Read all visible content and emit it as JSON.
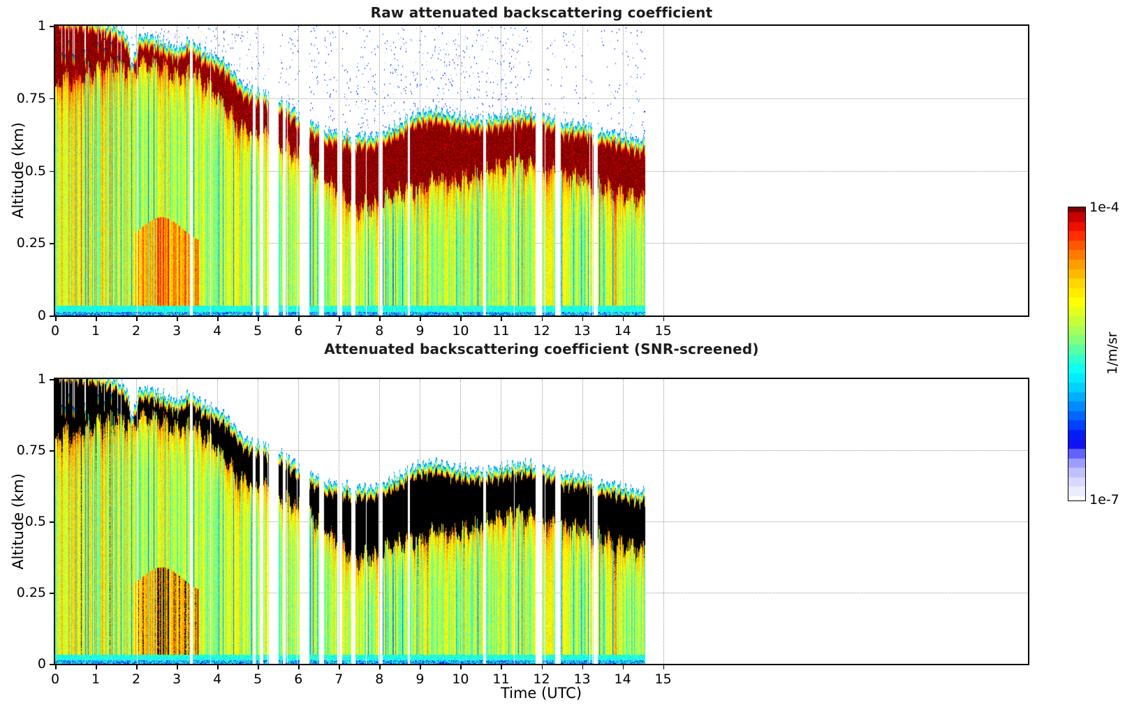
{
  "figure": {
    "background": "#ffffff",
    "colorbar": {
      "max_label": "1e-4",
      "min_label": "1e-7",
      "unit_label": "1/m/sr",
      "scale": "log",
      "levels": 32
    },
    "colormap_stops": [
      {
        "v": 0.0,
        "c": "#ffffff"
      },
      {
        "v": 0.04,
        "c": "#e8e8ff"
      },
      {
        "v": 0.08,
        "c": "#d0d0ff"
      },
      {
        "v": 0.11,
        "c": "#b4b4ff"
      },
      {
        "v": 0.14,
        "c": "#9090ff"
      },
      {
        "v": 0.17,
        "c": "#5050ff"
      },
      {
        "v": 0.2,
        "c": "#0000ee"
      },
      {
        "v": 0.26,
        "c": "#0044ff"
      },
      {
        "v": 0.32,
        "c": "#0088ff"
      },
      {
        "v": 0.38,
        "c": "#00ccff"
      },
      {
        "v": 0.44,
        "c": "#00ffff"
      },
      {
        "v": 0.5,
        "c": "#44ffbb"
      },
      {
        "v": 0.55,
        "c": "#88ff77"
      },
      {
        "v": 0.6,
        "c": "#bbff44"
      },
      {
        "v": 0.65,
        "c": "#e8ff18"
      },
      {
        "v": 0.68,
        "c": "#ffff00"
      },
      {
        "v": 0.74,
        "c": "#ffd800"
      },
      {
        "v": 0.8,
        "c": "#ffa500"
      },
      {
        "v": 0.86,
        "c": "#ff6400"
      },
      {
        "v": 0.91,
        "c": "#ff2800"
      },
      {
        "v": 0.95,
        "c": "#e60000"
      },
      {
        "v": 0.98,
        "c": "#b40000"
      },
      {
        "v": 1.0,
        "c": "#7a0000"
      }
    ],
    "saturated_color_screened": "#000000",
    "grid_color": "#9a9a9a"
  },
  "chart_data": [
    {
      "type": "heatmap",
      "variant": "raw",
      "title": "Raw attenuated backscattering coefficient",
      "xlabel": "",
      "ylabel": "Altitude (km)",
      "xlim": [
        0,
        24
      ],
      "ylim": [
        0,
        1
      ],
      "xticks": [
        "0",
        "1",
        "2",
        "3",
        "4",
        "5",
        "6",
        "7",
        "8",
        "9",
        "10",
        "11",
        "12",
        "13",
        "14",
        "15"
      ],
      "yticks": [
        "0",
        "0.25",
        "0.5",
        "0.75",
        "1"
      ],
      "grid": true,
      "colorbar_min": 1e-07,
      "colorbar_max": 0.0001,
      "units": "1/m/sr",
      "data_time_range": [
        0,
        14.55
      ],
      "cloud_top_km": [
        [
          0,
          1.04
        ],
        [
          0.8,
          1.03
        ],
        [
          1.5,
          1.0
        ],
        [
          1.75,
          0.97
        ],
        [
          1.9,
          0.86
        ],
        [
          2.05,
          0.96
        ],
        [
          2.3,
          0.97
        ],
        [
          2.6,
          0.95
        ],
        [
          3.0,
          0.92
        ],
        [
          3.3,
          0.95
        ],
        [
          3.6,
          0.92
        ],
        [
          4.0,
          0.89
        ],
        [
          4.3,
          0.86
        ],
        [
          4.6,
          0.8
        ],
        [
          5.0,
          0.77
        ],
        [
          5.4,
          0.76
        ],
        [
          5.8,
          0.72
        ],
        [
          6.2,
          0.67
        ],
        [
          6.6,
          0.64
        ],
        [
          7.0,
          0.63
        ],
        [
          7.4,
          0.62
        ],
        [
          7.8,
          0.62
        ],
        [
          8.2,
          0.64
        ],
        [
          8.6,
          0.67
        ],
        [
          9.0,
          0.7
        ],
        [
          9.4,
          0.71
        ],
        [
          9.8,
          0.69
        ],
        [
          10.2,
          0.68
        ],
        [
          10.6,
          0.68
        ],
        [
          11.0,
          0.69
        ],
        [
          11.4,
          0.7
        ],
        [
          11.8,
          0.7
        ],
        [
          12.2,
          0.68
        ],
        [
          12.6,
          0.66
        ],
        [
          13.0,
          0.66
        ],
        [
          13.4,
          0.64
        ],
        [
          13.8,
          0.63
        ],
        [
          14.2,
          0.61
        ],
        [
          14.55,
          0.6
        ]
      ],
      "cloud_base_km": [
        [
          0,
          0.8
        ],
        [
          0.5,
          0.82
        ],
        [
          1.0,
          0.84
        ],
        [
          1.5,
          0.86
        ],
        [
          1.9,
          0.84
        ],
        [
          2.2,
          0.88
        ],
        [
          2.6,
          0.86
        ],
        [
          3.0,
          0.82
        ],
        [
          3.4,
          0.84
        ],
        [
          3.8,
          0.78
        ],
        [
          4.2,
          0.72
        ],
        [
          4.6,
          0.64
        ],
        [
          5.0,
          0.62
        ],
        [
          5.4,
          0.6
        ],
        [
          5.8,
          0.57
        ],
        [
          6.2,
          0.53
        ],
        [
          6.6,
          0.48
        ],
        [
          7.0,
          0.43
        ],
        [
          7.4,
          0.37
        ],
        [
          7.8,
          0.38
        ],
        [
          8.2,
          0.41
        ],
        [
          8.6,
          0.43
        ],
        [
          9.0,
          0.44
        ],
        [
          9.4,
          0.47
        ],
        [
          9.8,
          0.46
        ],
        [
          10.2,
          0.47
        ],
        [
          10.6,
          0.5
        ],
        [
          11.0,
          0.51
        ],
        [
          11.4,
          0.53
        ],
        [
          11.8,
          0.52
        ],
        [
          12.2,
          0.5
        ],
        [
          12.6,
          0.48
        ],
        [
          13.0,
          0.47
        ],
        [
          13.4,
          0.45
        ],
        [
          13.8,
          0.43
        ],
        [
          14.2,
          0.41
        ],
        [
          14.55,
          0.4
        ]
      ],
      "gaps": [
        [
          2.0,
          2.03
        ],
        [
          3.32,
          3.38
        ],
        [
          4.86,
          4.94
        ],
        [
          5.04,
          5.12
        ],
        [
          5.27,
          5.5
        ],
        [
          5.6,
          5.67
        ],
        [
          6.03,
          6.27
        ],
        [
          6.5,
          6.62
        ],
        [
          6.95,
          7.08
        ],
        [
          7.3,
          7.4
        ],
        [
          7.96,
          8.07
        ],
        [
          8.7,
          8.74
        ],
        [
          10.55,
          10.63
        ],
        [
          11.84,
          12.02
        ],
        [
          12.32,
          12.47
        ],
        [
          13.27,
          13.37
        ]
      ],
      "features": {
        "above_cloud": "sparse blue noise speckles on white",
        "cloud_layer": "saturated dark-red descending stratus layer",
        "below_cloud": "yellow-orange aerosol streaks, strong orange block 2-3.5h below 0.3 km",
        "surface_layer": "cyan-blue strip 0-0.03 km with dark blue dots"
      }
    },
    {
      "type": "heatmap",
      "variant": "screened",
      "title": "Attenuated backscattering coefficient (SNR-screened)",
      "xlabel": "Time (UTC)",
      "ylabel": "Altitude (km)",
      "xlim": [
        0,
        24
      ],
      "ylim": [
        0,
        1
      ],
      "xticks": [
        "0",
        "1",
        "2",
        "3",
        "4",
        "5",
        "6",
        "7",
        "8",
        "9",
        "10",
        "11",
        "12",
        "13",
        "14",
        "15"
      ],
      "yticks": [
        "0",
        "0.25",
        "0.5",
        "0.75",
        "1"
      ],
      "grid": true,
      "colorbar_min": 1e-07,
      "colorbar_max": 0.0001,
      "units": "1/m/sr",
      "data_time_range": [
        0,
        14.55
      ],
      "same_scene_as_chart": 0,
      "features": {
        "above_cloud": "white (noise screened out)",
        "cloud_layer": "black (signal above colour range) with yellow-green-cyan-blue fringe on top",
        "below_cloud": "same aerosol field as raw plot",
        "surface_layer": "cyan-blue strip 0-0.03 km"
      }
    }
  ]
}
